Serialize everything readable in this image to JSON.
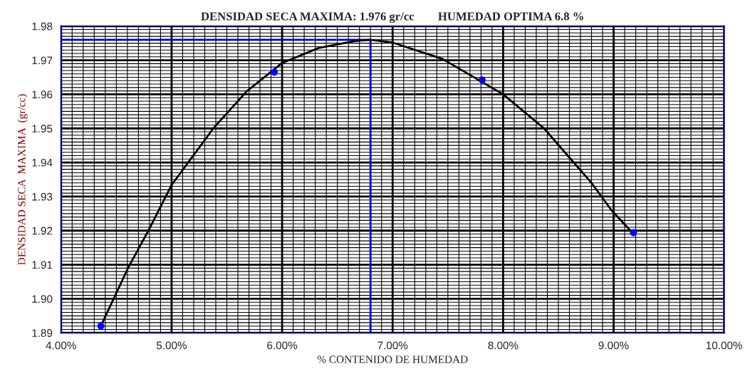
{
  "chart_data": {
    "type": "line",
    "title": "DENSIDAD SECA MAXIMA: 1.976 gr/cc        HUMEDAD OPTIMA 6.8 %",
    "xlabel": "% CONTENIDO DE HUMEDAD",
    "ylabel": "DENSIDAD SECA  MAXIMA  (gr/cc)",
    "series": [
      {
        "color": "#0000cc",
        "marker": "none",
        "x": [
          4.0,
          6.8,
          6.8
        ],
        "values": [
          1.976,
          1.976,
          1.89
        ]
      },
      {
        "color": "#000000",
        "marker": "none",
        "x": [
          4.36,
          4.61,
          4.79,
          5.0,
          5.38,
          5.68,
          6.0,
          6.33,
          6.65,
          6.8,
          7.0,
          7.45,
          8.0,
          8.37,
          8.8,
          8.98,
          9.18
        ],
        "values": [
          1.892,
          1.9093,
          1.92,
          1.9334,
          1.9501,
          1.9609,
          1.9692,
          1.9736,
          1.9756,
          1.976,
          1.9752,
          1.9704,
          1.96,
          1.95,
          1.934,
          1.926,
          1.919
        ]
      },
      {
        "type": "scatter",
        "color": "#0000ff",
        "marker": "circle",
        "x": [
          4.36,
          5.93,
          7.81,
          9.18
        ],
        "values": [
          1.892,
          1.9665,
          1.9642,
          1.9194
        ]
      }
    ],
    "xlim": [
      4,
      10
    ],
    "xticks": [
      {
        "value": 4,
        "label": "4.00%"
      },
      {
        "value": 5,
        "label": "5.00%"
      },
      {
        "value": 6,
        "label": "6.00%"
      },
      {
        "value": 7,
        "label": "7.00%"
      },
      {
        "value": 8,
        "label": "8.00%"
      },
      {
        "value": 9,
        "label": "9.00%"
      },
      {
        "value": 10,
        "label": "10.00%"
      }
    ],
    "ylim": [
      1.89,
      1.98
    ],
    "yticks": [
      {
        "value": 1.89,
        "label": "1.89"
      },
      {
        "value": 1.9,
        "label": "1.90"
      },
      {
        "value": 1.91,
        "label": "1.91"
      },
      {
        "value": 1.92,
        "label": "1.92"
      },
      {
        "value": 1.93,
        "label": "1.93"
      },
      {
        "value": 1.94,
        "label": "1.94"
      },
      {
        "value": 1.95,
        "label": "1.95"
      },
      {
        "value": 1.96,
        "label": "1.96"
      },
      {
        "value": 1.97,
        "label": "1.97"
      },
      {
        "value": 1.98,
        "label": "1.98"
      }
    ],
    "grid": true
  }
}
